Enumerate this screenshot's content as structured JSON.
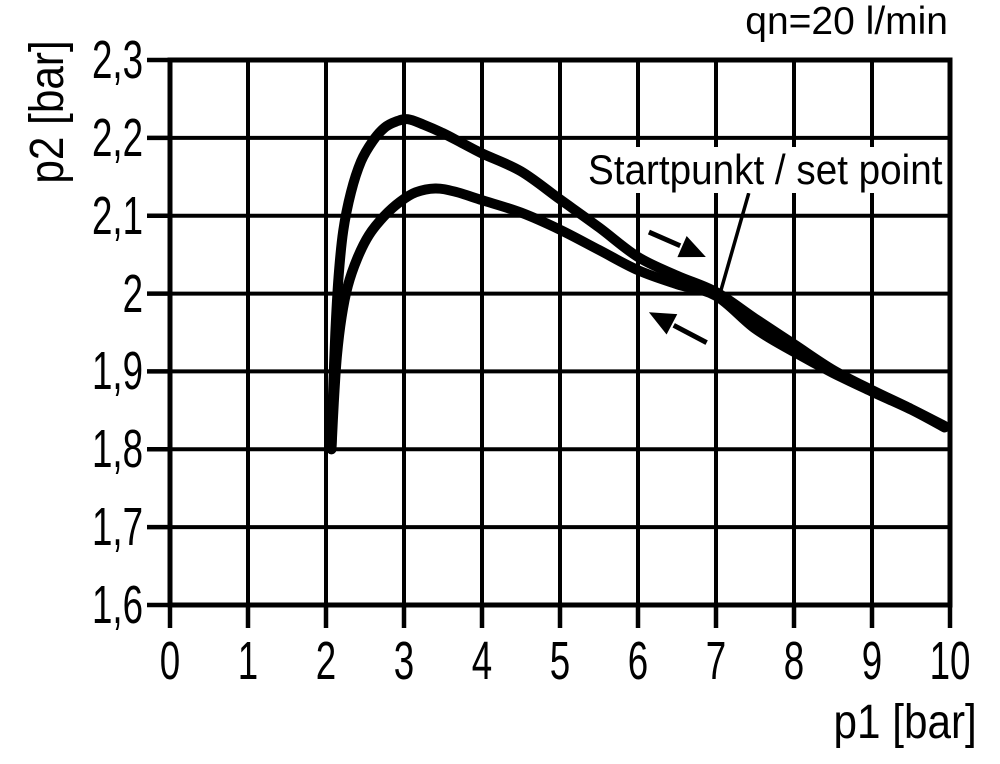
{
  "chart_data": {
    "type": "line",
    "flow_label": "qn=20 l/min",
    "xlabel": "p1 [bar]",
    "ylabel": "p2 [bar]",
    "xlim": [
      0,
      10
    ],
    "ylim": [
      1.6,
      2.3
    ],
    "grid": true,
    "legend": "none",
    "colors": {
      "line": "#000000",
      "grid": "#000000",
      "background": "#ffffff",
      "text": "#000000"
    },
    "x_tick_values": [
      0,
      1,
      2,
      3,
      4,
      5,
      6,
      7,
      8,
      9,
      10
    ],
    "x_tick_labels": [
      "0",
      "1",
      "2",
      "3",
      "4",
      "5",
      "6",
      "7",
      "8",
      "9",
      "10"
    ],
    "y_tick_values": [
      2.3,
      2.2,
      2.1,
      2.0,
      1.9,
      1.8,
      1.7,
      1.6
    ],
    "y_tick_labels": [
      "2,3",
      "2,2",
      "2,1",
      "2",
      "1,9",
      "1,8",
      "1,7",
      "1,6"
    ],
    "series": [
      {
        "name": "upper-curve",
        "points": [
          [
            2.07,
            1.8
          ],
          [
            2.09,
            1.87
          ],
          [
            2.12,
            1.95
          ],
          [
            2.16,
            2.02
          ],
          [
            2.22,
            2.08
          ],
          [
            2.32,
            2.13
          ],
          [
            2.45,
            2.17
          ],
          [
            2.6,
            2.196
          ],
          [
            2.75,
            2.213
          ],
          [
            2.9,
            2.221
          ],
          [
            3.05,
            2.224
          ],
          [
            3.25,
            2.217
          ],
          [
            3.5,
            2.206
          ],
          [
            3.75,
            2.193
          ],
          [
            4.0,
            2.18
          ],
          [
            4.5,
            2.157
          ],
          [
            5.0,
            2.121
          ],
          [
            5.5,
            2.085
          ],
          [
            6.0,
            2.047
          ],
          [
            6.5,
            2.023
          ],
          [
            7.0,
            2.002
          ],
          [
            7.5,
            1.968
          ],
          [
            8.0,
            1.935
          ],
          [
            8.5,
            1.902
          ],
          [
            9.0,
            1.876
          ],
          [
            9.5,
            1.852
          ],
          [
            9.93,
            1.83
          ]
        ]
      },
      {
        "name": "lower-curve",
        "points": [
          [
            2.07,
            1.8
          ],
          [
            2.1,
            1.86
          ],
          [
            2.14,
            1.92
          ],
          [
            2.2,
            1.97
          ],
          [
            2.28,
            2.01
          ],
          [
            2.4,
            2.045
          ],
          [
            2.55,
            2.075
          ],
          [
            2.75,
            2.1
          ],
          [
            2.95,
            2.118
          ],
          [
            3.15,
            2.13
          ],
          [
            3.4,
            2.135
          ],
          [
            3.65,
            2.131
          ],
          [
            4.0,
            2.12
          ],
          [
            4.5,
            2.104
          ],
          [
            5.0,
            2.082
          ],
          [
            5.5,
            2.056
          ],
          [
            6.0,
            2.03
          ],
          [
            6.5,
            2.012
          ],
          [
            7.0,
            1.997
          ],
          [
            7.5,
            1.955
          ],
          [
            8.0,
            1.925
          ],
          [
            8.5,
            1.898
          ],
          [
            9.0,
            1.874
          ],
          [
            9.5,
            1.851
          ],
          [
            9.93,
            1.828
          ]
        ]
      }
    ],
    "annotation": {
      "text": "Startpunkt / set point",
      "set_point": {
        "p1": 7,
        "p2": 2.0
      },
      "leader": {
        "from": [
          7.42,
          2.129
        ],
        "to": [
          7.06,
          2.003
        ]
      }
    },
    "arrows": [
      {
        "name": "direction-arrow-right",
        "from": [
          6.14,
          2.079
        ],
        "to": [
          6.87,
          2.047
        ]
      },
      {
        "name": "direction-arrow-left",
        "from": [
          6.88,
          1.937
        ],
        "to": [
          6.14,
          1.976
        ]
      }
    ]
  }
}
